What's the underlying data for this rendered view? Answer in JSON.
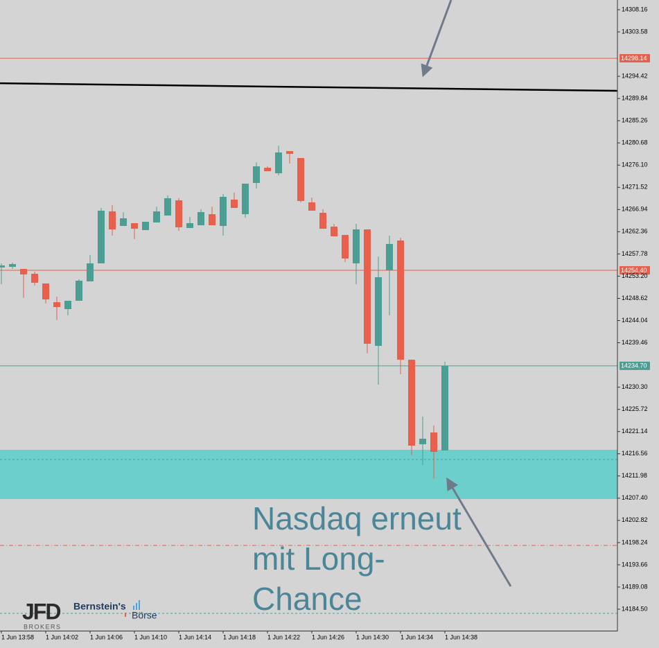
{
  "chart_data": {
    "type": "candlestick",
    "categories": [
      "1 Jun 13:58",
      null,
      null,
      null,
      "1 Jun 14:02",
      null,
      null,
      null,
      "1 Jun 14:06",
      null,
      null,
      null,
      "1 Jun 14:10",
      null,
      null,
      null,
      "1 Jun 14:14",
      null,
      null,
      null,
      "1 Jun 14:18",
      null,
      null,
      null,
      "1 Jun 14:22",
      null,
      null,
      null,
      "1 Jun 14:26",
      null,
      null,
      null,
      "1 Jun 14:30",
      null,
      null,
      null,
      "1 Jun 14:34",
      null,
      null,
      null,
      "1 Jun 14:38"
    ],
    "open": [
      14254.98,
      14255.12,
      14254.69,
      14253.69,
      14251.69,
      14247.83,
      14246.4,
      14248.12,
      14252.12,
      14255.84,
      14266.56,
      14263.55,
      14264.13,
      14262.7,
      14264.27,
      14265.7,
      14268.84,
      14263.13,
      14263.7,
      14265.98,
      14263.55,
      14268.99,
      14265.98,
      14272.42,
      14275.56,
      14274.42,
      14278.99,
      14277.57,
      14268.42,
      14266.27,
      14263.41,
      14261.7,
      14255.84,
      14262.84,
      14238.82,
      14254.41,
      14260.55,
      14235.96,
      14218.52,
      14220.95,
      14217.24
    ],
    "high": [
      14255.84,
      14255.98,
      14254.69,
      14254.12,
      14251.69,
      14248.97,
      14248.12,
      14252.55,
      14257.55,
      14267.27,
      14267.84,
      14266.41,
      14264.13,
      14264.41,
      14267.56,
      14269.85,
      14269.27,
      14265.41,
      14266.99,
      14267.56,
      14270.13,
      14270.42,
      14272.28,
      14276.71,
      14275.85,
      14280.14,
      14278.99,
      14277.57,
      14269.42,
      14266.99,
      14263.98,
      14261.7,
      14263.98,
      14262.84,
      14257.26,
      14261.55,
      14261.12,
      14235.96,
      14224.24,
      14222.38,
      14235.53
    ],
    "low": [
      14251.55,
      14254.69,
      14248.69,
      14251.26,
      14247.54,
      14244.11,
      14245.11,
      14248.12,
      14252.12,
      14255.84,
      14261.55,
      14263.55,
      14260.84,
      14262.7,
      14264.27,
      14265.7,
      14262.55,
      14263.13,
      14263.7,
      14263.7,
      14261.55,
      14267.27,
      14265.27,
      14271.27,
      14274.85,
      14273.99,
      14276.42,
      14268.42,
      14266.7,
      14262.98,
      14261.41,
      14256.12,
      14251.55,
      14237.25,
      14230.82,
      14245.11,
      14232.96,
      14216.24,
      14214.23,
      14211.37,
      14217.24
    ],
    "close": [
      14255.41,
      14255.69,
      14253.55,
      14251.83,
      14248.4,
      14246.83,
      14248.12,
      14252.26,
      14255.84,
      14266.7,
      14262.84,
      14265.13,
      14262.98,
      14264.41,
      14266.56,
      14269.27,
      14263.27,
      14264.13,
      14266.41,
      14263.7,
      14269.56,
      14267.27,
      14272.28,
      14275.85,
      14274.85,
      14278.71,
      14278.42,
      14268.7,
      14266.7,
      14262.98,
      14261.41,
      14256.84,
      14262.84,
      14239.25,
      14252.98,
      14259.84,
      14235.96,
      14218.24,
      14219.67,
      14216.95,
      14234.7
    ],
    "up_color": "#4c9e95",
    "down_color": "#e8604c",
    "ylim": [
      14180.07,
      14310.16
    ],
    "yticks": [
      14308.16,
      14303.58,
      14294.42,
      14289.84,
      14285.26,
      14280.68,
      {
        "value": 14276.1,
        "label": "14276.10"
      },
      14271.52,
      14266.94,
      14262.36,
      14257.78,
      {
        "value": 14253.2,
        "label": "14253.20"
      },
      14248.62,
      14244.04,
      14239.46,
      {
        "value": 14230.3,
        "label": "14230.30"
      },
      14225.72,
      14221.14,
      14216.56,
      14211.98,
      {
        "value": 14207.4,
        "label": "14207.40"
      },
      14202.82,
      14198.24,
      14193.66,
      14189.08,
      {
        "value": 14184.5,
        "label": "14184.50"
      }
    ],
    "grid": false,
    "levels": [
      {
        "value": 14298.14,
        "color": "#e8604c",
        "style": "solid"
      },
      {
        "value": {
          "value": 14254.4,
          "label": "14254.40"
        },
        "color": "#e8604c",
        "style": "solid"
      },
      {
        "value": {
          "value": 14234.7,
          "label": "14234.70"
        },
        "color": "#4c9e95",
        "style": "solid"
      },
      {
        "value": 14215.38,
        "color": "#4c9e95",
        "style": "dashed"
      },
      {
        "value": 14197.65,
        "color": "#e8604c",
        "style": "dashdot"
      },
      {
        "value": 14183.64,
        "color": "#4c9e95",
        "style": "dashed"
      }
    ],
    "zone": {
      "range": [
        14207.23,
        14217.38
      ],
      "color": "#6dcfcc"
    },
    "trend_line": {
      "values": [
        14292.98,
        14291.43
      ],
      "color": "#000000"
    },
    "annotation": [
      "Nasdaq erneut",
      "mit Long-",
      "Chance"
    ],
    "logos": {
      "jfd": "JFD",
      "jfd_sub": "BROKERS",
      "bernstein": "Bernstein's",
      "bernstein_sub": "Börse"
    }
  }
}
